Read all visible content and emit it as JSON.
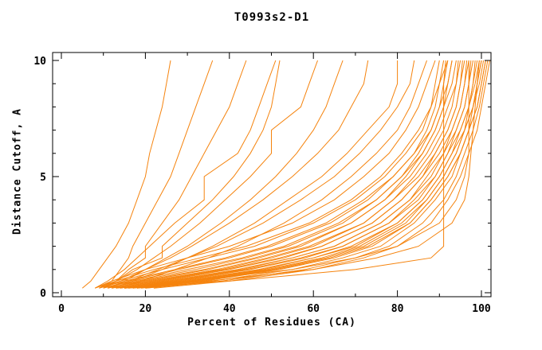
{
  "chart_data": {
    "type": "line",
    "title": "T0993s2-D1",
    "xlabel": "Percent of Residues (CA)",
    "ylabel": "Distance Cutoff, A",
    "xlim": [
      0,
      100
    ],
    "ylim": [
      0,
      10
    ],
    "x_major_ticks": [
      0,
      20,
      40,
      60,
      80,
      100
    ],
    "x_tick_labels": [
      "0",
      "20",
      "40",
      "60",
      "80",
      "100"
    ],
    "x_minor_ticks": [
      10,
      30,
      50,
      70,
      90
    ],
    "y_major_ticks": [
      0,
      5,
      10
    ],
    "y_tick_labels": [
      "0",
      "5",
      "10"
    ],
    "y_minor_ticks": [
      1,
      2,
      3,
      4,
      6,
      7,
      8,
      9
    ],
    "grid": false,
    "legend": "none",
    "line_color": "#F5830D",
    "frame_color": "#000000",
    "series_meaning": "each series = one model: percent of CA residues (x) within each distance cutoff in Angstroms (y)",
    "cutoffs": [
      0.2,
      0.5,
      1,
      1.5,
      2,
      3,
      4,
      5,
      6,
      7,
      8,
      9,
      10
    ],
    "series": [
      [
        5,
        7,
        9,
        11,
        13,
        16,
        18,
        20,
        21,
        22.5,
        24,
        25,
        26
      ],
      [
        9,
        12,
        14,
        16,
        17,
        20,
        23,
        26,
        28,
        30,
        32,
        34,
        36
      ],
      [
        10,
        13,
        16,
        20,
        20,
        24,
        28,
        31,
        34,
        37,
        40,
        42,
        44
      ],
      [
        8,
        11,
        15,
        18,
        21,
        27,
        34,
        34,
        42,
        45,
        47,
        49,
        51
      ],
      [
        10,
        13,
        17,
        24,
        24,
        30,
        36,
        41,
        45,
        48,
        50,
        51,
        52
      ],
      [
        9,
        13,
        18,
        22,
        26,
        33,
        39,
        45,
        50,
        50,
        57,
        59,
        61
      ],
      [
        11,
        15,
        20,
        25,
        30,
        38,
        45,
        51,
        56,
        60,
        63,
        65,
        67
      ],
      [
        10,
        14,
        20,
        26,
        31,
        40,
        48,
        55,
        61,
        66,
        69,
        72,
        73
      ],
      [
        12,
        17,
        24,
        30,
        36,
        46,
        54,
        62,
        68,
        73,
        78,
        80,
        80
      ],
      [
        11,
        16,
        23,
        30,
        37,
        48,
        57,
        65,
        71,
        76,
        80,
        83,
        84
      ],
      [
        13,
        19,
        27,
        35,
        42,
        53,
        62,
        69,
        75,
        80,
        83,
        85,
        87
      ],
      [
        15,
        40,
        70,
        88,
        91,
        91,
        91,
        91,
        91,
        91,
        91,
        91,
        91.5
      ],
      [
        8,
        12,
        20,
        30,
        40,
        55,
        65,
        72,
        78,
        82,
        85,
        87,
        89
      ],
      [
        9,
        14,
        24,
        35,
        46,
        60,
        70,
        77,
        82,
        86,
        88,
        89,
        90
      ],
      [
        10,
        16,
        28,
        40,
        50,
        64,
        73,
        79,
        84,
        87,
        89,
        90,
        91
      ],
      [
        8,
        13,
        22,
        33,
        44,
        59,
        69,
        76,
        81,
        85,
        88,
        90,
        92
      ],
      [
        11,
        18,
        32,
        44,
        54,
        67,
        75,
        81,
        85,
        88,
        90,
        91,
        92
      ],
      [
        9,
        15,
        27,
        39,
        49,
        63,
        72,
        79,
        84,
        88,
        90,
        92,
        93
      ],
      [
        12,
        20,
        35,
        47,
        57,
        69,
        77,
        82,
        86,
        89,
        91,
        92,
        93
      ],
      [
        10,
        17,
        30,
        43,
        53,
        66,
        75,
        81,
        86,
        89,
        91,
        93,
        94
      ],
      [
        13,
        22,
        38,
        50,
        60,
        72,
        79,
        84,
        88,
        91,
        93,
        94,
        94.5
      ],
      [
        11,
        19,
        34,
        46,
        56,
        69,
        77,
        83,
        87,
        90,
        92,
        94,
        95
      ],
      [
        14,
        24,
        40,
        53,
        62,
        74,
        81,
        86,
        89,
        92,
        94,
        95,
        95.5
      ],
      [
        12,
        21,
        37,
        49,
        59,
        72,
        79,
        85,
        89,
        92,
        94,
        95,
        96
      ],
      [
        15,
        26,
        43,
        55,
        65,
        76,
        83,
        87,
        91,
        93,
        95,
        96,
        96.5
      ],
      [
        13,
        23,
        39,
        52,
        62,
        74,
        81,
        86,
        90,
        93,
        95,
        96,
        97
      ],
      [
        16,
        28,
        45,
        58,
        67,
        78,
        84,
        89,
        92,
        94,
        96,
        97,
        97.5
      ],
      [
        14,
        25,
        42,
        55,
        65,
        76,
        83,
        88,
        91,
        94,
        96,
        97,
        98
      ],
      [
        17,
        30,
        48,
        60,
        70,
        80,
        86,
        90,
        93,
        95,
        97,
        98,
        98.5
      ],
      [
        15,
        27,
        44,
        57,
        67,
        78,
        85,
        89,
        92,
        95,
        97,
        98,
        99
      ],
      [
        18,
        32,
        50,
        63,
        72,
        82,
        87,
        91,
        94,
        96,
        97,
        98.5,
        99.5
      ],
      [
        16,
        29,
        47,
        60,
        69,
        80,
        86,
        90,
        93,
        96,
        98,
        99,
        100
      ],
      [
        19,
        34,
        52,
        65,
        74,
        83,
        88,
        92,
        95,
        97,
        98,
        99,
        100
      ],
      [
        17,
        31,
        49,
        62,
        71,
        81,
        87,
        91,
        94,
        96,
        98,
        99.5,
        100.5
      ],
      [
        20,
        36,
        55,
        67,
        76,
        84,
        89,
        93,
        95,
        97,
        99,
        100,
        101
      ],
      [
        18,
        33,
        51,
        64,
        73,
        83,
        88,
        92,
        95,
        97,
        99,
        100,
        101
      ],
      [
        15,
        35,
        60,
        75,
        85,
        93,
        96,
        97,
        97.5,
        98,
        98.5,
        99,
        99.5
      ],
      [
        13,
        30,
        55,
        70,
        80,
        90,
        94,
        96,
        97,
        97,
        97,
        97,
        97
      ],
      [
        20,
        38,
        58,
        70,
        78,
        86,
        91,
        94,
        96,
        98,
        99.5,
        100.5,
        101.5
      ],
      [
        22,
        40,
        60,
        72,
        80,
        88,
        92,
        95,
        97,
        99,
        100,
        101,
        102
      ]
    ]
  }
}
